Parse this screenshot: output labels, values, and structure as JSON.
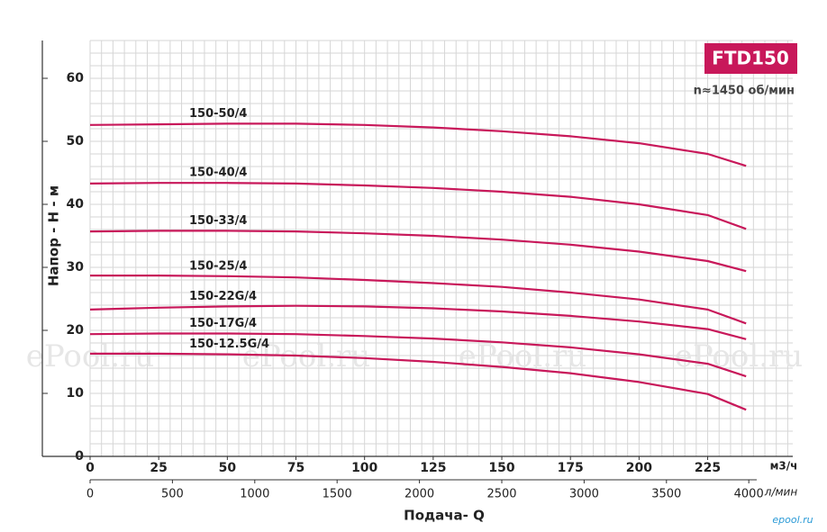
{
  "chart_data": {
    "type": "line",
    "badge": "FTD150",
    "subtitle": "n≈1450 об/мин",
    "ylabel": "Напор - H - м",
    "xlabel": "Подача- Q",
    "xunit": "м3/ч",
    "x2unit": "л/мин",
    "watermark": "ePool.ru",
    "corner_mark": "epool.ru",
    "color": "#c8185a",
    "grid": true,
    "x": [
      0,
      25,
      50,
      75,
      100,
      125,
      150,
      175,
      200,
      225,
      239
    ],
    "xlim": [
      0,
      256
    ],
    "xticks": [
      0,
      25,
      50,
      75,
      100,
      125,
      150,
      175,
      200,
      225
    ],
    "x2lim": [
      0,
      4267
    ],
    "x2ticks": [
      0,
      500,
      1000,
      1500,
      2000,
      2500,
      3000,
      3500,
      4000
    ],
    "ylim": [
      0,
      66
    ],
    "yticks": [
      0,
      10,
      20,
      30,
      40,
      50,
      60
    ],
    "series": [
      {
        "name": "150-50/4",
        "values": [
          52.6,
          52.7,
          52.8,
          52.8,
          52.6,
          52.2,
          51.6,
          50.8,
          49.7,
          48.0,
          46.1
        ]
      },
      {
        "name": "150-40/4",
        "values": [
          43.3,
          43.4,
          43.4,
          43.3,
          43.0,
          42.6,
          42.0,
          41.2,
          40.0,
          38.3,
          36.1
        ]
      },
      {
        "name": "150-33/4",
        "values": [
          35.7,
          35.8,
          35.8,
          35.7,
          35.4,
          35.0,
          34.4,
          33.6,
          32.5,
          31.0,
          29.4
        ]
      },
      {
        "name": "150-25/4",
        "values": [
          28.7,
          28.7,
          28.6,
          28.4,
          28.0,
          27.5,
          26.9,
          26.0,
          24.9,
          23.3,
          21.1
        ]
      },
      {
        "name": "150-22G/4",
        "values": [
          23.3,
          23.6,
          23.8,
          23.9,
          23.8,
          23.5,
          23.0,
          22.3,
          21.4,
          20.2,
          18.6
        ]
      },
      {
        "name": "150-17G/4",
        "values": [
          19.4,
          19.5,
          19.5,
          19.4,
          19.1,
          18.7,
          18.1,
          17.3,
          16.2,
          14.7,
          12.7
        ]
      },
      {
        "name": "150-12.5G/4",
        "values": [
          16.3,
          16.3,
          16.2,
          16.0,
          15.6,
          15.0,
          14.2,
          13.2,
          11.8,
          9.9,
          7.4
        ]
      }
    ]
  }
}
